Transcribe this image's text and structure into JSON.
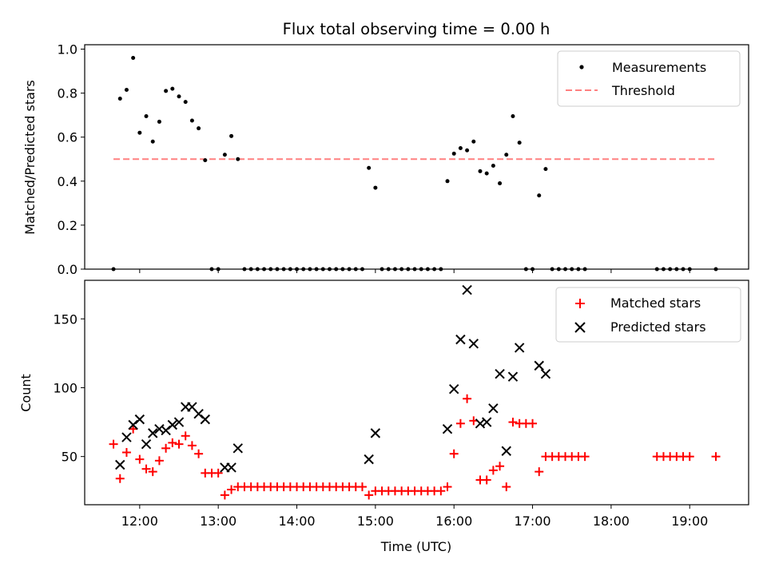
{
  "chart_data": [
    {
      "type": "scatter",
      "title": "Flux total observing time = 0.00 h",
      "xlabel": "",
      "ylabel": "Matched/Predicted stars",
      "xlim": [
        "11:18",
        "19:45"
      ],
      "ylim": [
        0,
        1.02
      ],
      "yticks": [
        "0.0",
        "0.2",
        "0.4",
        "0.6",
        "0.8",
        "1.0"
      ],
      "grid": false,
      "legend_position": "top-right",
      "series": [
        {
          "name": "Measurements",
          "marker": "dot",
          "color": "#000000",
          "points": [
            [
              "11:40",
              0.0
            ],
            [
              "11:45",
              0.775
            ],
            [
              "11:50",
              0.815
            ],
            [
              "11:55",
              0.96
            ],
            [
              "12:00",
              0.62
            ],
            [
              "12:05",
              0.695
            ],
            [
              "12:10",
              0.58
            ],
            [
              "12:15",
              0.67
            ],
            [
              "12:20",
              0.81
            ],
            [
              "12:25",
              0.82
            ],
            [
              "12:30",
              0.785
            ],
            [
              "12:35",
              0.76
            ],
            [
              "12:40",
              0.675
            ],
            [
              "12:45",
              0.64
            ],
            [
              "12:50",
              0.495
            ],
            [
              "12:55",
              0.0
            ],
            [
              "13:00",
              0.0
            ],
            [
              "13:05",
              0.52
            ],
            [
              "13:10",
              0.605
            ],
            [
              "13:15",
              0.5
            ],
            [
              "13:20",
              0.0
            ],
            [
              "13:25",
              0.0
            ],
            [
              "13:30",
              0.0
            ],
            [
              "13:35",
              0.0
            ],
            [
              "13:40",
              0.0
            ],
            [
              "13:45",
              0.0
            ],
            [
              "13:50",
              0.0
            ],
            [
              "13:55",
              0.0
            ],
            [
              "14:00",
              0.0
            ],
            [
              "14:05",
              0.0
            ],
            [
              "14:10",
              0.0
            ],
            [
              "14:15",
              0.0
            ],
            [
              "14:20",
              0.0
            ],
            [
              "14:25",
              0.0
            ],
            [
              "14:30",
              0.0
            ],
            [
              "14:35",
              0.0
            ],
            [
              "14:40",
              0.0
            ],
            [
              "14:45",
              0.0
            ],
            [
              "14:50",
              0.0
            ],
            [
              "14:55",
              0.46
            ],
            [
              "15:00",
              0.37
            ],
            [
              "15:05",
              0.0
            ],
            [
              "15:10",
              0.0
            ],
            [
              "15:15",
              0.0
            ],
            [
              "15:20",
              0.0
            ],
            [
              "15:25",
              0.0
            ],
            [
              "15:30",
              0.0
            ],
            [
              "15:35",
              0.0
            ],
            [
              "15:40",
              0.0
            ],
            [
              "15:45",
              0.0
            ],
            [
              "15:50",
              0.0
            ],
            [
              "15:55",
              0.4
            ],
            [
              "16:00",
              0.525
            ],
            [
              "16:05",
              0.55
            ],
            [
              "16:10",
              0.54
            ],
            [
              "16:15",
              0.58
            ],
            [
              "16:20",
              0.445
            ],
            [
              "16:25",
              0.435
            ],
            [
              "16:30",
              0.47
            ],
            [
              "16:35",
              0.39
            ],
            [
              "16:40",
              0.52
            ],
            [
              "16:45",
              0.695
            ],
            [
              "16:50",
              0.575
            ],
            [
              "16:55",
              0.0
            ],
            [
              "17:00",
              0.0
            ],
            [
              "17:05",
              0.335
            ],
            [
              "17:10",
              0.455
            ],
            [
              "17:15",
              0.0
            ],
            [
              "17:20",
              0.0
            ],
            [
              "17:25",
              0.0
            ],
            [
              "17:30",
              0.0
            ],
            [
              "17:35",
              0.0
            ],
            [
              "17:40",
              0.0
            ],
            [
              "18:35",
              0.0
            ],
            [
              "18:40",
              0.0
            ],
            [
              "18:45",
              0.0
            ],
            [
              "18:50",
              0.0
            ],
            [
              "18:55",
              0.0
            ],
            [
              "19:00",
              0.0
            ],
            [
              "19:20",
              0.0
            ]
          ]
        },
        {
          "name": "Threshold",
          "style": "dashed",
          "color": "#ff8080",
          "points": [
            [
              "11:40",
              0.5
            ],
            [
              "19:20",
              0.5
            ]
          ]
        }
      ]
    },
    {
      "type": "scatter",
      "title": "",
      "xlabel": "Time (UTC)",
      "ylabel": "Count",
      "xlim": [
        "11:18",
        "19:45"
      ],
      "ylim": [
        15,
        178
      ],
      "xticks": [
        "12:00",
        "13:00",
        "14:00",
        "15:00",
        "16:00",
        "17:00",
        "18:00",
        "19:00"
      ],
      "yticks": [
        "50",
        "100",
        "150"
      ],
      "grid": false,
      "legend_position": "top-right",
      "series": [
        {
          "name": "Matched stars",
          "marker": "plus",
          "color": "#ff0000",
          "points": [
            [
              "11:40",
              59
            ],
            [
              "11:45",
              34
            ],
            [
              "11:50",
              53
            ],
            [
              "11:55",
              70
            ],
            [
              "12:00",
              48
            ],
            [
              "12:05",
              41
            ],
            [
              "12:10",
              39
            ],
            [
              "12:15",
              47
            ],
            [
              "12:20",
              56
            ],
            [
              "12:25",
              60
            ],
            [
              "12:30",
              59
            ],
            [
              "12:35",
              65
            ],
            [
              "12:40",
              58
            ],
            [
              "12:45",
              52
            ],
            [
              "12:50",
              38
            ],
            [
              "12:55",
              38
            ],
            [
              "13:00",
              38
            ],
            [
              "13:05",
              22
            ],
            [
              "13:10",
              26
            ],
            [
              "13:15",
              28
            ],
            [
              "13:20",
              28
            ],
            [
              "13:25",
              28
            ],
            [
              "13:30",
              28
            ],
            [
              "13:35",
              28
            ],
            [
              "13:40",
              28
            ],
            [
              "13:45",
              28
            ],
            [
              "13:50",
              28
            ],
            [
              "13:55",
              28
            ],
            [
              "14:00",
              28
            ],
            [
              "14:05",
              28
            ],
            [
              "14:10",
              28
            ],
            [
              "14:15",
              28
            ],
            [
              "14:20",
              28
            ],
            [
              "14:25",
              28
            ],
            [
              "14:30",
              28
            ],
            [
              "14:35",
              28
            ],
            [
              "14:40",
              28
            ],
            [
              "14:45",
              28
            ],
            [
              "14:50",
              28
            ],
            [
              "14:55",
              22
            ],
            [
              "15:00",
              25
            ],
            [
              "15:05",
              25
            ],
            [
              "15:10",
              25
            ],
            [
              "15:15",
              25
            ],
            [
              "15:20",
              25
            ],
            [
              "15:25",
              25
            ],
            [
              "15:30",
              25
            ],
            [
              "15:35",
              25
            ],
            [
              "15:40",
              25
            ],
            [
              "15:45",
              25
            ],
            [
              "15:50",
              25
            ],
            [
              "15:55",
              28
            ],
            [
              "16:00",
              52
            ],
            [
              "16:05",
              74
            ],
            [
              "16:10",
              92
            ],
            [
              "16:15",
              76
            ],
            [
              "16:20",
              33
            ],
            [
              "16:25",
              33
            ],
            [
              "16:30",
              40
            ],
            [
              "16:35",
              43
            ],
            [
              "16:40",
              28
            ],
            [
              "16:45",
              75
            ],
            [
              "16:50",
              74
            ],
            [
              "16:55",
              74
            ],
            [
              "17:00",
              74
            ],
            [
              "17:05",
              39
            ],
            [
              "17:10",
              50
            ],
            [
              "17:15",
              50
            ],
            [
              "17:20",
              50
            ],
            [
              "17:25",
              50
            ],
            [
              "17:30",
              50
            ],
            [
              "17:35",
              50
            ],
            [
              "17:40",
              50
            ],
            [
              "18:35",
              50
            ],
            [
              "18:40",
              50
            ],
            [
              "18:45",
              50
            ],
            [
              "18:50",
              50
            ],
            [
              "18:55",
              50
            ],
            [
              "19:00",
              50
            ],
            [
              "19:20",
              50
            ]
          ]
        },
        {
          "name": "Predicted stars",
          "marker": "x",
          "color": "#000000",
          "points": [
            [
              "11:45",
              44
            ],
            [
              "11:50",
              64
            ],
            [
              "11:55",
              73
            ],
            [
              "12:00",
              77
            ],
            [
              "12:05",
              59
            ],
            [
              "12:10",
              67
            ],
            [
              "12:15",
              70
            ],
            [
              "12:20",
              69
            ],
            [
              "12:25",
              73
            ],
            [
              "12:30",
              75
            ],
            [
              "12:35",
              86
            ],
            [
              "12:40",
              86
            ],
            [
              "12:45",
              81
            ],
            [
              "12:50",
              77
            ],
            [
              "13:05",
              42
            ],
            [
              "13:10",
              42
            ],
            [
              "13:15",
              56
            ],
            [
              "14:55",
              48
            ],
            [
              "15:00",
              67
            ],
            [
              "15:55",
              70
            ],
            [
              "16:00",
              99
            ],
            [
              "16:05",
              135
            ],
            [
              "16:10",
              171
            ],
            [
              "16:15",
              132
            ],
            [
              "16:20",
              74
            ],
            [
              "16:25",
              75
            ],
            [
              "16:30",
              85
            ],
            [
              "16:35",
              110
            ],
            [
              "16:40",
              54
            ],
            [
              "16:45",
              108
            ],
            [
              "16:50",
              129
            ],
            [
              "17:05",
              116
            ],
            [
              "17:10",
              110
            ]
          ]
        }
      ]
    }
  ]
}
